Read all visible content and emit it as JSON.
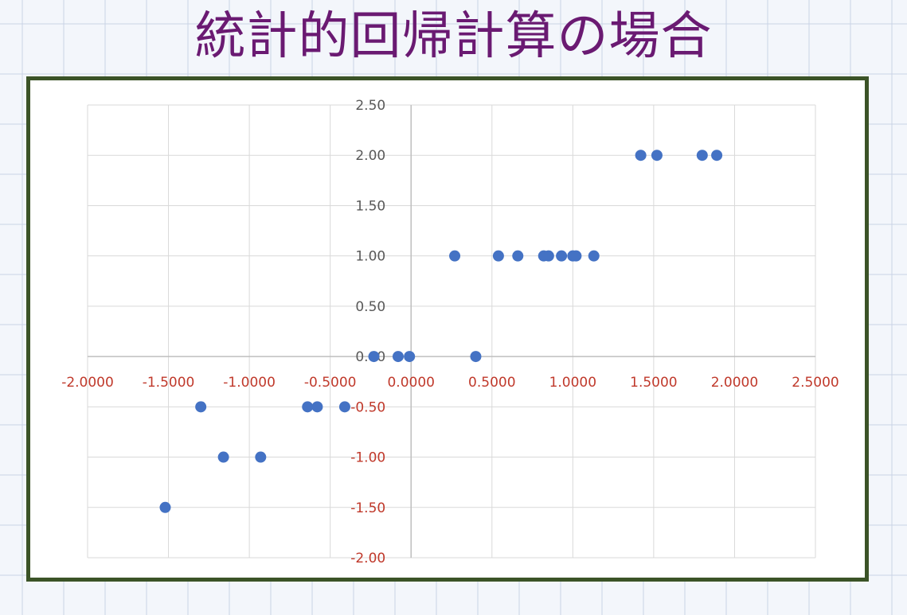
{
  "page": {
    "title": "統計的回帰計算の場合"
  },
  "colors": {
    "title": "#6a1a72",
    "frame": "#3b5327",
    "point": "#4472c4",
    "x_tick": "#c0392b",
    "y_tick_positive": "#595959",
    "y_tick_negative": "#c0392b",
    "grid": "#d9d9d9",
    "axis": "#bfbfbf"
  },
  "chart_data": {
    "type": "scatter",
    "title": "",
    "xlabel": "",
    "ylabel": "",
    "xlim": [
      -2.0,
      2.5
    ],
    "ylim": [
      -2.0,
      2.5
    ],
    "grid": true,
    "x_ticks": [
      "-2.0000",
      "-1.5000",
      "-1.0000",
      "-0.5000",
      "0.0000",
      "0.5000",
      "1.0000",
      "1.5000",
      "2.0000",
      "2.5000"
    ],
    "x_tick_values": [
      -2.0,
      -1.5,
      -1.0,
      -0.5,
      0.0,
      0.5,
      1.0,
      1.5,
      2.0,
      2.5
    ],
    "y_ticks": [
      "2.50",
      "2.00",
      "1.50",
      "1.00",
      "0.50",
      "0.00",
      "-0.50",
      "-1.00",
      "-1.50",
      "-2.00"
    ],
    "y_tick_values": [
      2.5,
      2.0,
      1.5,
      1.0,
      0.5,
      0.0,
      -0.5,
      -1.0,
      -1.5,
      -2.0
    ],
    "series": [
      {
        "name": "data",
        "points": [
          {
            "x": -1.52,
            "y": -1.5
          },
          {
            "x": -1.16,
            "y": -1.0
          },
          {
            "x": -0.93,
            "y": -1.0
          },
          {
            "x": -1.3,
            "y": -0.5
          },
          {
            "x": -0.64,
            "y": -0.5
          },
          {
            "x": -0.58,
            "y": -0.5
          },
          {
            "x": -0.41,
            "y": -0.5
          },
          {
            "x": -0.23,
            "y": 0.0
          },
          {
            "x": -0.08,
            "y": 0.0
          },
          {
            "x": -0.01,
            "y": 0.0
          },
          {
            "x": 0.4,
            "y": 0.0
          },
          {
            "x": 0.27,
            "y": 1.0
          },
          {
            "x": 0.54,
            "y": 1.0
          },
          {
            "x": 0.66,
            "y": 1.0
          },
          {
            "x": 0.82,
            "y": 1.0
          },
          {
            "x": 0.85,
            "y": 1.0
          },
          {
            "x": 0.93,
            "y": 1.0
          },
          {
            "x": 1.0,
            "y": 1.0
          },
          {
            "x": 1.02,
            "y": 1.0
          },
          {
            "x": 1.13,
            "y": 1.0
          },
          {
            "x": 1.42,
            "y": 2.0
          },
          {
            "x": 1.52,
            "y": 2.0
          },
          {
            "x": 1.8,
            "y": 2.0
          },
          {
            "x": 1.89,
            "y": 2.0
          }
        ]
      }
    ]
  }
}
